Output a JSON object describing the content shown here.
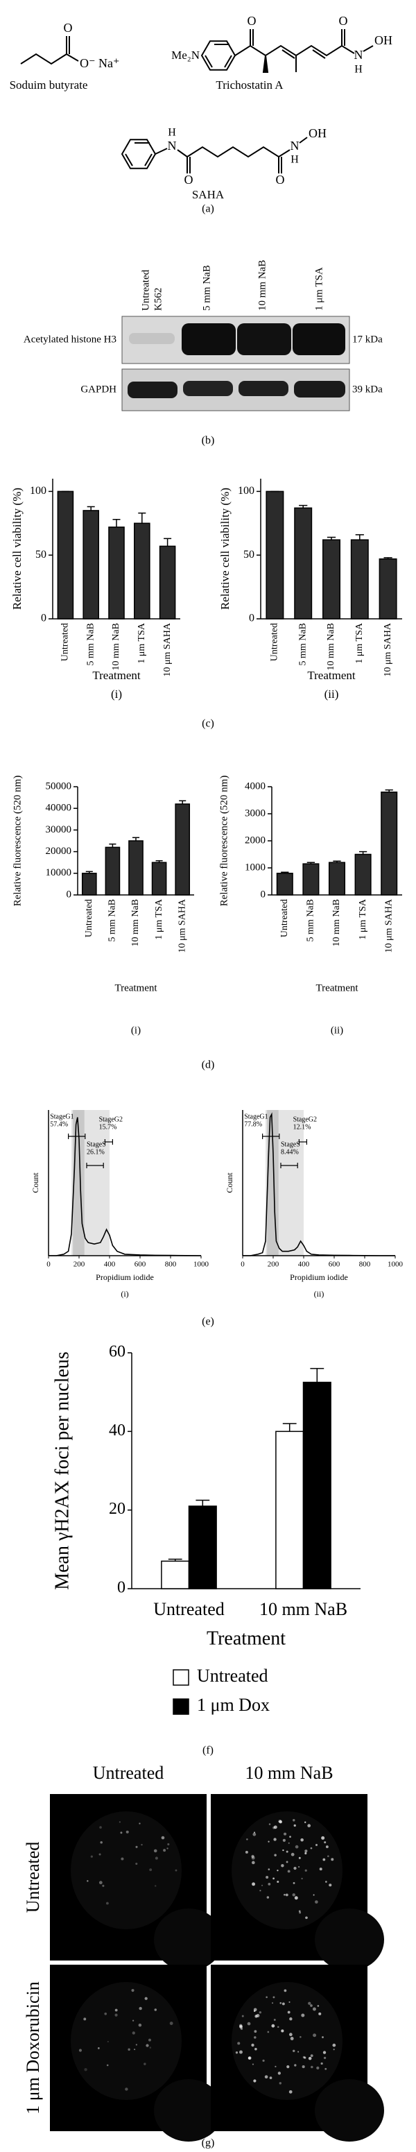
{
  "panel_labels": [
    "(a)",
    "(b)",
    "(c)",
    "(d)",
    "(e)",
    "(f)",
    "(g)"
  ],
  "structures": [
    {
      "name": "Soduim butyrate",
      "atoms": [
        "O",
        "O⁻ Na⁺"
      ]
    },
    {
      "name": "Trichostatin A",
      "atoms": [
        "Me₂N",
        "O",
        "O",
        "N",
        "H",
        "OH"
      ]
    },
    {
      "name": "SAHA",
      "atoms": [
        "H",
        "N",
        "O",
        "O",
        "N",
        "H",
        "OH"
      ]
    }
  ],
  "blot": {
    "lanes": [
      [
        "Untreated",
        "K562"
      ],
      [
        "5 mm NaB"
      ],
      [
        "10 mm NaB"
      ],
      [
        "1 μm TSA"
      ]
    ],
    "rows": [
      {
        "label": "Acetylated histone H3",
        "size": "17 kDa"
      },
      {
        "label": "GAPDH",
        "size": "39 kDa"
      }
    ]
  },
  "chart_data": [
    {
      "type": "bar",
      "subtitle": "(i)",
      "xlabel": "Treatment",
      "ylabel": "Relative cell viability (%)",
      "categories": [
        "Untreated",
        "5 mm NaB",
        "10 mm NaB",
        "1 μm TSA",
        "10 μm SAHA"
      ],
      "values": [
        100,
        85,
        72,
        75,
        57
      ],
      "errors": [
        0,
        3,
        6,
        8,
        6
      ],
      "color": "#2b2b2b",
      "ylim": [
        0,
        110
      ],
      "yticks": [
        0,
        50,
        100
      ]
    },
    {
      "type": "bar",
      "subtitle": "(ii)",
      "xlabel": "Treatment",
      "ylabel": "Relative cell viability (%)",
      "categories": [
        "Untreated",
        "5 mm NaB",
        "10 mm NaB",
        "1 μm TSA",
        "10 μm SAHA"
      ],
      "values": [
        100,
        87,
        62,
        62,
        47
      ],
      "errors": [
        0,
        2,
        2,
        4,
        1
      ],
      "color": "#2b2b2b",
      "ylim": [
        0,
        110
      ],
      "yticks": [
        0,
        50,
        100
      ]
    },
    {
      "type": "bar",
      "subtitle": "(i)",
      "xlabel": "Treatment",
      "ylabel": "Relative fluorescence (520 nm)",
      "categories": [
        "Untreated",
        "5 mm NaB",
        "10 mm NaB",
        "1 μm TSA",
        "10 μm SAHA"
      ],
      "values": [
        10000,
        22000,
        25000,
        15000,
        42000
      ],
      "errors": [
        800,
        1500,
        1500,
        800,
        1500
      ],
      "color": "#2b2b2b",
      "ylim": [
        0,
        50000
      ],
      "yticks": [
        0,
        10000,
        20000,
        30000,
        40000,
        50000
      ]
    },
    {
      "type": "bar",
      "subtitle": "(ii)",
      "xlabel": "Treatment",
      "ylabel": "Relative fluorescence (520 nm)",
      "categories": [
        "Untreated",
        "5 mm NaB",
        "10 mm NaB",
        "1 μm TSA",
        "10 μm SAHA"
      ],
      "values": [
        800,
        1150,
        1200,
        1500,
        3800
      ],
      "errors": [
        40,
        50,
        50,
        100,
        80
      ],
      "color": "#2b2b2b",
      "ylim": [
        0,
        4000
      ],
      "yticks": [
        0,
        1000,
        2000,
        3000,
        4000
      ]
    },
    {
      "type": "line",
      "subtitle": "(i)",
      "xlabel": "Propidium iodide",
      "ylabel": "Count",
      "x": [
        0,
        50,
        100,
        130,
        150,
        170,
        180,
        190,
        200,
        210,
        220,
        240,
        260,
        300,
        340,
        360,
        380,
        400,
        420,
        450,
        500,
        600,
        700,
        800,
        900,
        1000
      ],
      "values": [
        0,
        0,
        1,
        3,
        15,
        60,
        90,
        95,
        80,
        45,
        22,
        12,
        9,
        8,
        9,
        13,
        18,
        14,
        7,
        3,
        1,
        0.5,
        0.3,
        0.2,
        0.1,
        0
      ],
      "color": "#000000",
      "xlim": [
        0,
        1000
      ],
      "xticks": [
        0,
        200,
        400,
        600,
        800,
        1000
      ],
      "ylim": [
        0,
        100
      ],
      "annotations": [
        {
          "label": "StageG1",
          "percent": "57.4%"
        },
        {
          "label": "StageG2",
          "percent": "15.7%"
        },
        {
          "label": "StageS",
          "percent": "26.1%"
        }
      ]
    },
    {
      "type": "line",
      "subtitle": "(ii)",
      "xlabel": "Propidium iodide",
      "ylabel": "Count",
      "x": [
        0,
        50,
        100,
        130,
        150,
        170,
        180,
        190,
        200,
        210,
        220,
        240,
        260,
        300,
        340,
        360,
        380,
        400,
        420,
        450,
        500,
        600,
        700,
        800,
        900,
        1000
      ],
      "values": [
        0,
        0,
        1,
        2,
        10,
        70,
        95,
        97,
        70,
        30,
        10,
        5,
        3,
        3,
        4,
        6,
        10,
        7,
        3,
        1,
        0.5,
        0.3,
        0.2,
        0.1,
        0,
        0
      ],
      "color": "#000000",
      "xlim": [
        0,
        1000
      ],
      "xticks": [
        0,
        200,
        400,
        600,
        800,
        1000
      ],
      "ylim": [
        0,
        100
      ],
      "annotations": [
        {
          "label": "StageG1",
          "percent": "77.8%"
        },
        {
          "label": "StageG2",
          "percent": "12.1%"
        },
        {
          "label": "StageS",
          "percent": "8.44%"
        }
      ]
    },
    {
      "type": "bar",
      "xlabel": "Treatment",
      "ylabel": "Mean γH2AX foci per nucleus",
      "categories": [
        "Untreated",
        "10 mm NaB"
      ],
      "series": [
        {
          "name": "Untreated",
          "color": "#ffffff",
          "values": [
            7,
            40
          ],
          "errors": [
            0.5,
            2
          ]
        },
        {
          "name": "1 μm Dox",
          "color": "#000000",
          "values": [
            21,
            52.5
          ],
          "errors": [
            1.5,
            3.5
          ]
        }
      ],
      "ylim": [
        0,
        60
      ],
      "yticks": [
        0,
        20,
        40,
        60
      ],
      "legend": "bottom"
    }
  ],
  "micrographs": {
    "columns": [
      "Untreated",
      "10 mm NaB"
    ],
    "rows": [
      "Untreated",
      "1 μm Doxorubicin"
    ]
  }
}
